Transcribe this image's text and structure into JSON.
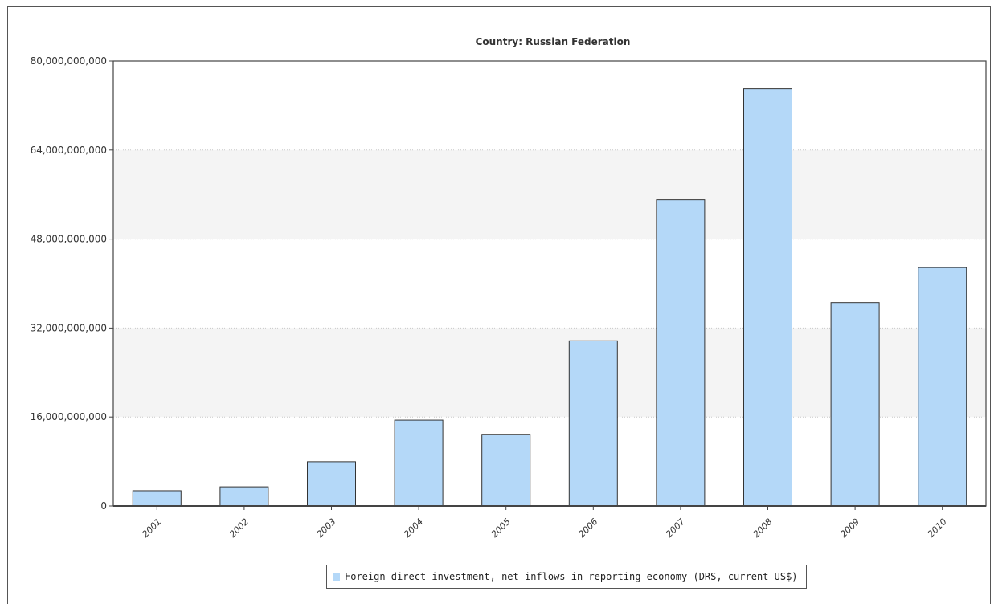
{
  "chart_data": {
    "type": "bar",
    "title": "Country: Russian Federation",
    "categories": [
      "2001",
      "2002",
      "2003",
      "2004",
      "2005",
      "2006",
      "2007",
      "2008",
      "2009",
      "2010"
    ],
    "series": [
      {
        "name": "Foreign direct investment, net inflows in reporting economy (DRS, current US$)",
        "values": [
          2750000000,
          3450000000,
          7960000000,
          15440000000,
          12890000000,
          29700000000,
          55070000000,
          75000000000,
          36580000000,
          42870000000
        ]
      }
    ],
    "ylim": [
      0,
      80000000000
    ],
    "yticks": [
      "0",
      "16,000,000,000",
      "32,000,000,000",
      "48,000,000,000",
      "64,000,000,000",
      "80,000,000,000"
    ],
    "ytick_values": [
      0,
      16000000000,
      32000000000,
      48000000000,
      64000000000,
      80000000000
    ],
    "grid": true,
    "legend_position": "bottom-center",
    "colors": {
      "bar_fill": "#b4d8f8",
      "bar_stroke": "#333333",
      "band": "#f4f4f4",
      "grid": "#c8c8c8",
      "axis": "#444444"
    }
  }
}
